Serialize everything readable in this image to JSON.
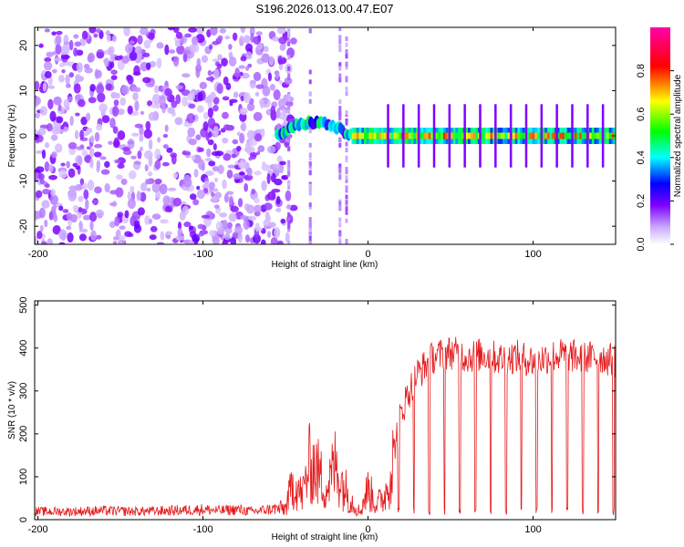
{
  "title": "S196.2026.013.00.47.E07",
  "chart_data": [
    {
      "type": "heatmap",
      "name": "spectrogram",
      "xlabel": "Height of straight line (km)",
      "ylabel": "Frequency (Hz)",
      "xlim": [
        -202,
        150
      ],
      "ylim": [
        -24,
        24
      ],
      "xticks": [
        "-200",
        "-100",
        "0",
        "100"
      ],
      "yticks": [
        "-20",
        "-10",
        "0",
        "10",
        "20"
      ],
      "tick_values_x": [
        -200,
        -100,
        0,
        100
      ],
      "tick_values_y": [
        -20,
        -10,
        0,
        10,
        20
      ],
      "colorbar": {
        "label": "Normalized spectral amplitude",
        "range": [
          0.0,
          1.0
        ],
        "ticks": [
          "0.0",
          "0.2",
          "0.4",
          "0.6",
          "0.8"
        ],
        "tick_values": [
          0.0,
          0.2,
          0.4,
          0.6,
          0.8
        ],
        "colors": [
          "#ffffff",
          "#7f00ff",
          "#0000ff",
          "#00ffff",
          "#00ff00",
          "#ffff00",
          "#ff0000",
          "#ff00aa"
        ]
      },
      "regions": [
        {
          "description": "broadband noise",
          "x_range": [
            -202,
            -55
          ],
          "amplitude": 0.15
        },
        {
          "description": "emerging signal",
          "x_range": [
            -55,
            -10
          ],
          "freq_center": 3,
          "amplitude": 0.35
        },
        {
          "description": "strong signal band",
          "x_range": [
            -10,
            150
          ],
          "freq_center": 0,
          "amplitude": 0.5
        }
      ]
    },
    {
      "type": "line",
      "name": "snr",
      "xlabel": "Height of straight line (km)",
      "ylabel": "SNR (10 * v/v)",
      "xlim": [
        -202,
        150
      ],
      "ylim": [
        0,
        510
      ],
      "xticks": [
        "-200",
        "-100",
        "0",
        "100"
      ],
      "yticks": [
        "0",
        "100",
        "200",
        "300",
        "400",
        "500"
      ],
      "tick_values_x": [
        -200,
        -100,
        0,
        100
      ],
      "tick_values_y": [
        0,
        100,
        200,
        300,
        400,
        500
      ],
      "color": "#e41a1c",
      "series": [
        {
          "name": "SNR",
          "x": [
            -202,
            -180,
            -160,
            -140,
            -120,
            -100,
            -90,
            -80,
            -70,
            -60,
            -50,
            -45,
            -40,
            -35,
            -30,
            -25,
            -20,
            -15,
            -10,
            -5,
            0,
            5,
            10,
            15,
            20,
            25,
            30,
            35,
            40,
            50,
            60,
            70,
            80,
            90,
            100,
            110,
            120,
            130,
            140,
            150
          ],
          "values": [
            20,
            20,
            22,
            20,
            22,
            25,
            22,
            25,
            20,
            25,
            30,
            100,
            60,
            150,
            120,
            80,
            140,
            90,
            50,
            20,
            80,
            40,
            60,
            150,
            250,
            300,
            340,
            360,
            380,
            390,
            380,
            385,
            375,
            380,
            370,
            380,
            385,
            375,
            380,
            370
          ]
        }
      ]
    }
  ]
}
